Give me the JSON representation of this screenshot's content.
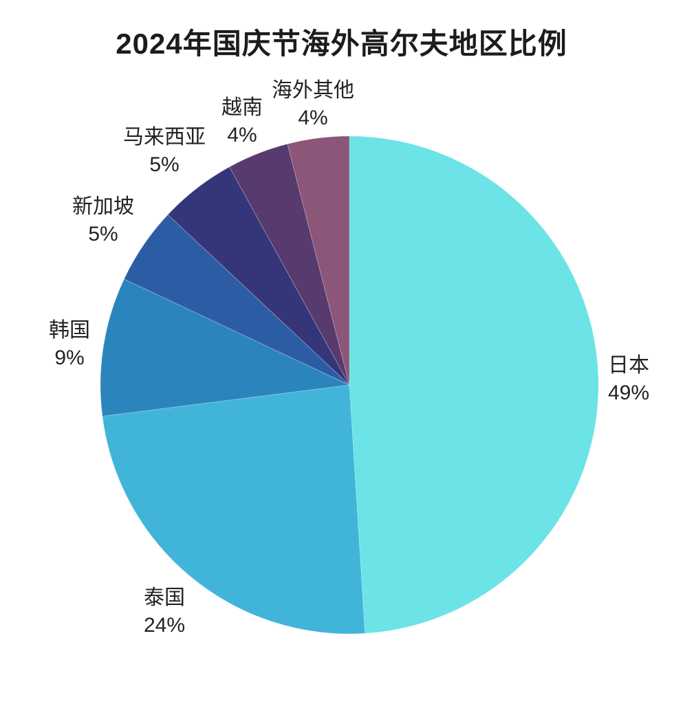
{
  "title": "2024年国庆节海外高尔夫地区比例",
  "chart_data": {
    "type": "pie",
    "title": "2024年国庆节海外高尔夫地区比例",
    "start_angle_deg": 0,
    "direction": "clockwise",
    "unit": "%",
    "slices": [
      {
        "label": "日本",
        "value": 49,
        "pct_text": "49%",
        "color": "#6BE3E7"
      },
      {
        "label": "泰国",
        "value": 24,
        "pct_text": "24%",
        "color": "#41B5D9"
      },
      {
        "label": "韩国",
        "value": 9,
        "pct_text": "9%",
        "color": "#2B85BC"
      },
      {
        "label": "新加坡",
        "value": 5,
        "pct_text": "5%",
        "color": "#2C5CA4"
      },
      {
        "label": "马来西亚",
        "value": 5,
        "pct_text": "5%",
        "color": "#35357A"
      },
      {
        "label": "越南",
        "value": 4,
        "pct_text": "4%",
        "color": "#573A6E"
      },
      {
        "label": "海外其他",
        "value": 4,
        "pct_text": "4%",
        "color": "#8C5678"
      }
    ],
    "colors": {
      "background": "#ffffff",
      "title_text": "#1c1c1c",
      "label_text": "#222222"
    }
  }
}
